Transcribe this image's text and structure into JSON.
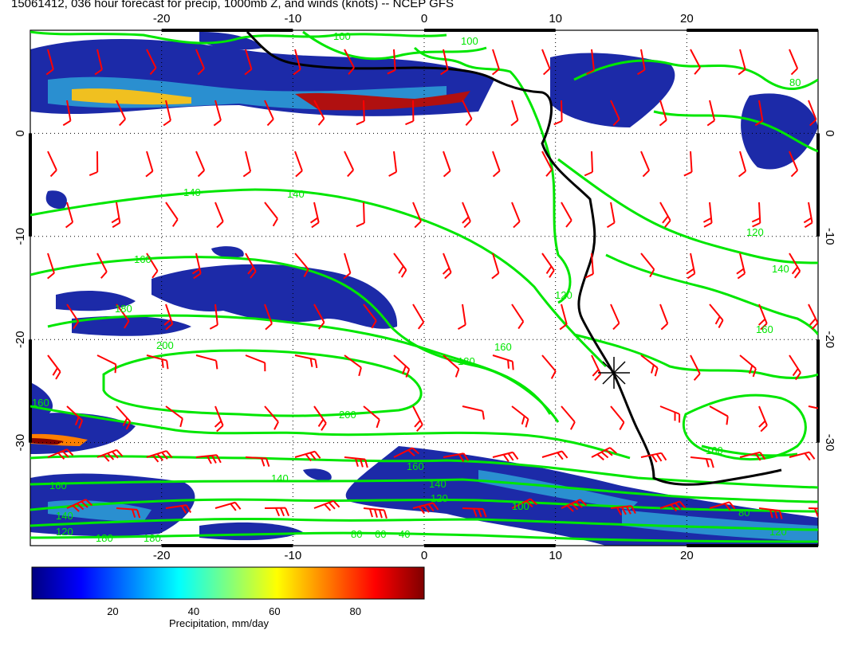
{
  "title": "15061412, 036 hour forecast for precip, 1000mb Z, and winds (knots) -- NCEP GFS",
  "map": {
    "lon_range": [
      -30,
      30
    ],
    "lat_range": [
      -40,
      10
    ],
    "lon_tick_labels": [
      "-20",
      "-10",
      "0",
      "10",
      "20"
    ],
    "lon_tick_values": [
      -20,
      -10,
      0,
      10,
      20
    ],
    "lat_tick_labels": [
      "0",
      "-10",
      "-20",
      "-30"
    ],
    "lat_tick_values": [
      0,
      -10,
      -20,
      -30
    ],
    "graticule": "dotted",
    "coastline_color": "#000000",
    "contour_color": "#00e600",
    "wind_barb_color": "#ff0000",
    "contour_labels": [
      "100",
      "100",
      "80",
      "140",
      "140",
      "160",
      "180",
      "200",
      "200",
      "180",
      "160",
      "120",
      "140",
      "160",
      "120",
      "100",
      "80",
      "60",
      "40",
      "120",
      "140",
      "160",
      "180",
      "160",
      "140",
      "120",
      "100",
      "80",
      "160",
      "120",
      "140",
      "180",
      "160"
    ],
    "station_marker": "asterisk"
  },
  "colorbar": {
    "tick_labels": [
      "20",
      "40",
      "60",
      "80"
    ],
    "tick_values": [
      20,
      40,
      60,
      80
    ],
    "vmin": 0,
    "vmax": 97,
    "label": "Precipitation, mm/day",
    "colors": [
      "#00007f",
      "#0000ff",
      "#007fff",
      "#00ffff",
      "#7fff7f",
      "#ffff00",
      "#ff7f00",
      "#ff0000",
      "#7f0000"
    ]
  }
}
